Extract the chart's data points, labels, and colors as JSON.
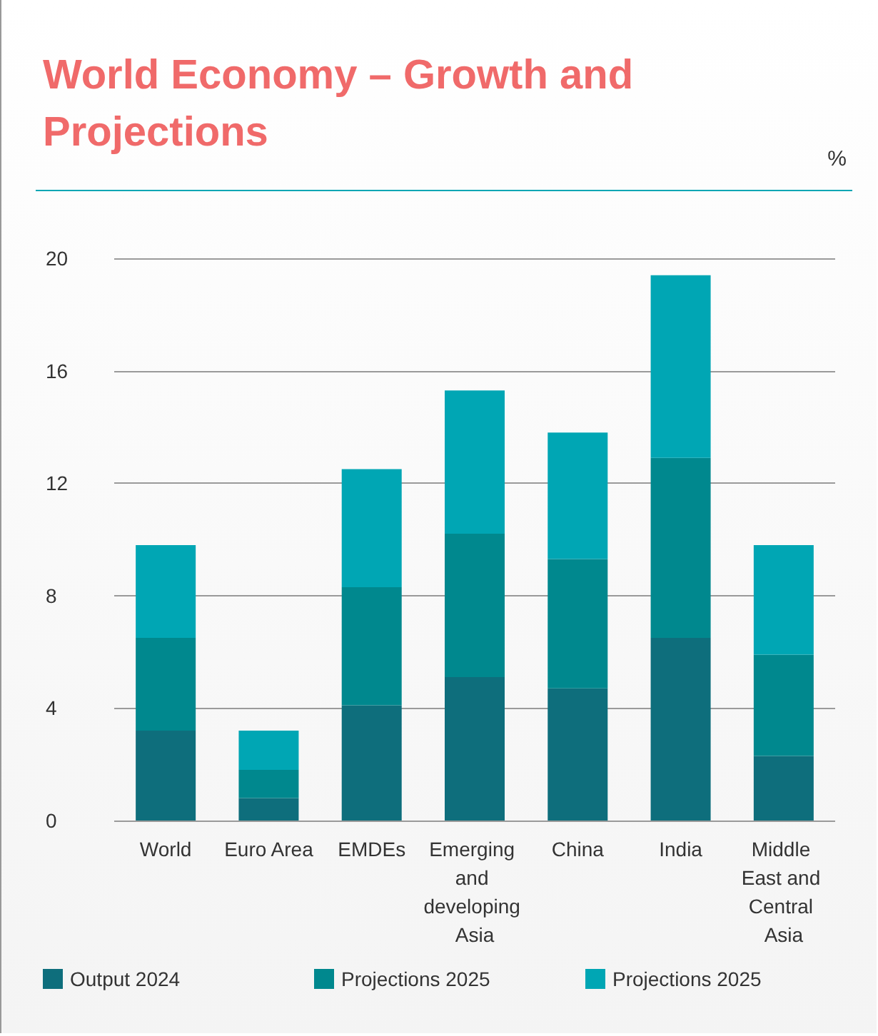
{
  "chart_data": {
    "type": "bar",
    "title": "World Economy – Growth and Projections",
    "ylabel": "%",
    "categories": [
      "World",
      "Euro Area",
      "EMDEs",
      "Emerging and developing Asia",
      "China",
      "India",
      "Middle East and Central Asia"
    ],
    "stacked": true,
    "ylim": [
      0,
      20
    ],
    "yticks": [
      0,
      4,
      8,
      12,
      16,
      20
    ],
    "grid": "y",
    "legend": "bottom",
    "series": [
      {
        "name": "Output 2024",
        "color": "#0e6e7c",
        "values": [
          3.2,
          0.8,
          4.1,
          5.1,
          4.7,
          6.5,
          2.3
        ]
      },
      {
        "name": "Projections 2025",
        "color": "#00888e",
        "values": [
          3.3,
          1.0,
          4.2,
          5.1,
          4.6,
          6.4,
          3.6
        ]
      },
      {
        "name": "Projections 2025",
        "color": "#00a6b4",
        "values": [
          3.3,
          1.4,
          4.2,
          5.1,
          4.5,
          6.5,
          3.9
        ]
      }
    ]
  }
}
